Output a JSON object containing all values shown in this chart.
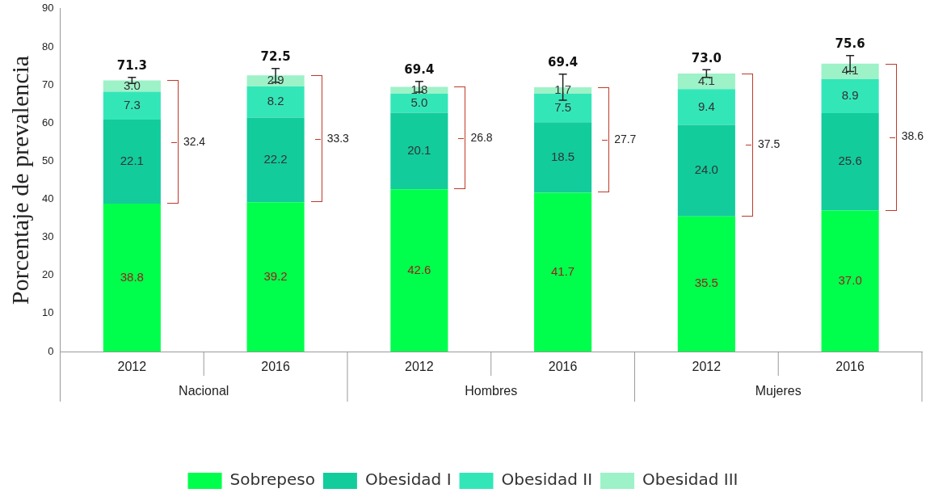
{
  "chart_data": {
    "type": "bar",
    "stacked": true,
    "ylabel": "Porcentaje de prevalencia",
    "categories": [
      "2012",
      "2016",
      "2012",
      "2016",
      "2012",
      "2016"
    ],
    "series": [
      {
        "name": "Sobrepeso",
        "color": "#00ff4c",
        "values": [
          38.8,
          39.2,
          42.6,
          41.7,
          35.5,
          37.0
        ],
        "value_labels": [
          "38.8",
          "39.2",
          "42.6",
          "41.7",
          "35.5",
          "37.0"
        ]
      },
      {
        "name": "Obesidad I",
        "color": "#12cc9c",
        "values": [
          22.1,
          22.2,
          20.1,
          18.5,
          24.0,
          25.6
        ],
        "value_labels": [
          "22.1",
          "22.2",
          "20.1",
          "18.5",
          "24.0",
          "25.6"
        ]
      },
      {
        "name": "Obesidad II",
        "color": "#33e6b8",
        "values": [
          7.3,
          8.2,
          5.0,
          7.5,
          9.4,
          8.9
        ],
        "value_labels": [
          "7.3",
          "8.2",
          "5.0",
          "7.5",
          "9.4",
          "8.9"
        ]
      },
      {
        "name": "Obesidad III",
        "color": "#9df2c8",
        "values": [
          3.0,
          2.9,
          1.8,
          1.7,
          4.1,
          4.1
        ],
        "value_labels": [
          "3.0",
          "2.9",
          "1.8",
          "1.7",
          "4.1",
          "4.1"
        ],
        "errors": [
          0.8,
          1.8,
          1.4,
          3.4,
          1.0,
          2.1
        ]
      }
    ],
    "totals": [
      "71.3",
      "72.5",
      "69.4",
      "69.4",
      "73.0",
      "75.6"
    ],
    "annotations": [
      "32.4",
      "33.3",
      "26.8",
      "27.7",
      "37.5",
      "38.6",
      "Nacional",
      "Hombres",
      "Mujeres"
    ],
    "ylim": [
      0,
      90
    ],
    "yticks": [
      0,
      10,
      20,
      30,
      40,
      50,
      60,
      70,
      80,
      90
    ],
    "grid": false,
    "legend": "bottom"
  }
}
